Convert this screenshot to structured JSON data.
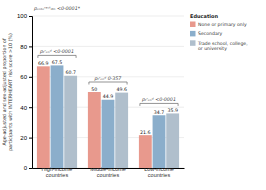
{
  "chart_data": {
    "type": "bar",
    "categories": [
      "High-income\ncountries",
      "Middle-income\ncountries",
      "Low-income\ncountries"
    ],
    "series": [
      {
        "name": "None or primary only",
        "color": "#e8998d",
        "values": [
          66.9,
          50.0,
          21.6
        ]
      },
      {
        "name": "Secondary",
        "color": "#8baecb",
        "values": [
          67.5,
          44.9,
          34.7
        ]
      },
      {
        "name": "Trade school, college,\nor university",
        "color": "#b0bfcc",
        "values": [
          60.7,
          49.6,
          35.9
        ]
      }
    ],
    "y_label": "Age-adjusted and sex-adjusted proportion of\nparticipants with INTERHEART risk score >10 (%)",
    "legend_title": "Education",
    "annotations": [
      "pₑₙₜₑʳᵃᶜᵗᵢ₀ₙ <0·0001*",
      "pₜʳₑₙᵈ <0·0001",
      "pₜʳₑₙᵈ 0·357",
      "pₜʳₑₙᵈ <0·0001"
    ],
    "ylim": [
      0,
      100
    ],
    "yticks": [
      0,
      20,
      40,
      60,
      80,
      100
    ],
    "grid": true,
    "legend": "right",
    "data_labels": true
  }
}
